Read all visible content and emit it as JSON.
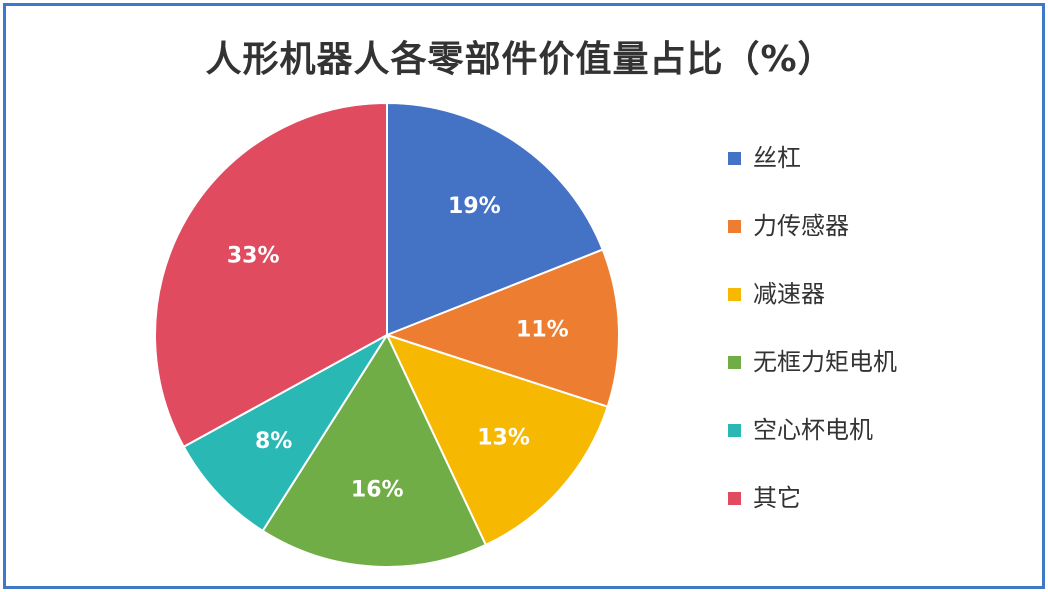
{
  "chart_data": {
    "type": "pie",
    "title": "人形机器人各零部件价值量占比（%）",
    "categories": [
      "丝杠",
      "力传感器",
      "减速器",
      "无框力矩电机",
      "空心杯电机",
      "其它"
    ],
    "values": [
      19,
      11,
      13,
      16,
      8,
      33
    ],
    "labels": [
      "19%",
      "11%",
      "13%",
      "16%",
      "8%",
      "33%"
    ],
    "colors": [
      "#4472c4",
      "#ed7d31",
      "#f6b800",
      "#70ad47",
      "#2ab8b4",
      "#e04b5f"
    ],
    "legend": "right"
  }
}
